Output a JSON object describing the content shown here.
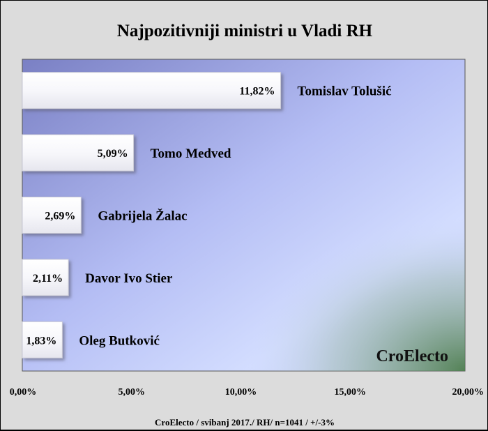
{
  "title": "Najpozitivniji ministri u Vladi RH",
  "source": "CroElecto / svibanj 2017./ RH/ n=1041 / +/-3%",
  "watermark": "CroElecto",
  "chart_data": {
    "type": "bar",
    "orientation": "horizontal",
    "title": "Najpozitivniji ministri u Vladi RH",
    "categories": [
      "Tomislav Tolušić",
      "Tomo Medved",
      "Gabrijela Žalac",
      "Davor Ivo Stier",
      "Oleg Butković"
    ],
    "values": [
      11.82,
      5.09,
      2.69,
      2.11,
      1.83
    ],
    "value_labels": [
      "11,82%",
      "5,09%",
      "2,69%",
      "2,11%",
      "1,83%"
    ],
    "xlim": [
      0,
      20
    ],
    "ticks": [
      0,
      5,
      10,
      15,
      20
    ],
    "tick_labels": [
      "0,00%",
      "5,00%",
      "10,00%",
      "15,00%",
      "20,00%"
    ],
    "grid": false,
    "legend": "none",
    "colors": {
      "frame_bg": "#dcdcdc",
      "plot_bg_dark": "#7f86c8",
      "plot_bg_light": "#d2dcff",
      "corner_green": "#5a8a5a",
      "bar": "#ffffff",
      "bar_shadow": "#8a8a9a"
    }
  }
}
